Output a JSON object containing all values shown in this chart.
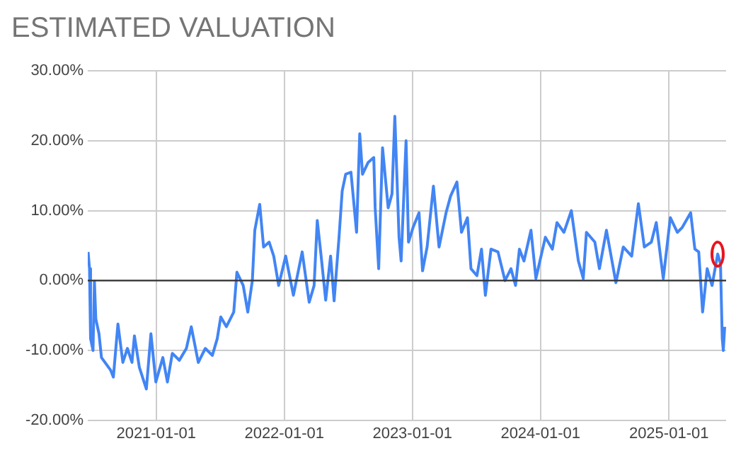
{
  "chart_data": {
    "type": "line",
    "title": "ESTIMATED VALUATION",
    "x": [
      "2020-06-21",
      "2020-06-25",
      "2020-06-28",
      "2020-07-05",
      "2020-07-09",
      "2020-07-13",
      "2020-07-22",
      "2020-07-29",
      "2020-08-24",
      "2020-09-01",
      "2020-09-14",
      "2020-09-28",
      "2020-10-11",
      "2020-10-24",
      "2020-10-31",
      "2020-11-14",
      "2020-12-04",
      "2020-12-17",
      "2020-12-31",
      "2021-01-20",
      "2021-02-02",
      "2021-02-16",
      "2021-03-08",
      "2021-03-28",
      "2021-04-11",
      "2021-05-01",
      "2021-05-21",
      "2021-06-10",
      "2021-06-24",
      "2021-07-04",
      "2021-07-20",
      "2021-08-10",
      "2021-08-19",
      "2021-09-06",
      "2021-09-19",
      "2021-10-02",
      "2021-10-09",
      "2021-10-23",
      "2021-11-03",
      "2021-11-19",
      "2021-12-02",
      "2021-12-16",
      "2022-01-05",
      "2022-01-27",
      "2022-02-21",
      "2022-03-13",
      "2022-03-27",
      "2022-04-05",
      "2022-04-16",
      "2022-04-29",
      "2022-05-13",
      "2022-05-23",
      "2022-06-06",
      "2022-06-15",
      "2022-06-25",
      "2022-07-10",
      "2022-07-26",
      "2022-08-04",
      "2022-08-12",
      "2022-08-28",
      "2022-09-13",
      "2022-09-17",
      "2022-09-27",
      "2022-10-08",
      "2022-10-24",
      "2022-11-04",
      "2022-11-12",
      "2022-11-24",
      "2022-11-30",
      "2022-12-14",
      "2022-12-21",
      "2023-01-03",
      "2023-01-20",
      "2023-01-30",
      "2023-02-12",
      "2023-03-02",
      "2023-03-18",
      "2023-04-07",
      "2023-04-20",
      "2023-05-08",
      "2023-05-21",
      "2023-06-07",
      "2023-06-17",
      "2023-07-04",
      "2023-07-17",
      "2023-07-28",
      "2023-08-13",
      "2023-09-02",
      "2023-09-22",
      "2023-10-09",
      "2023-10-22",
      "2023-11-02",
      "2023-11-15",
      "2023-12-05",
      "2023-12-19",
      "2024-01-15",
      "2024-02-04",
      "2024-02-17",
      "2024-03-08",
      "2024-03-29",
      "2024-04-18",
      "2024-05-02",
      "2024-05-11",
      "2024-06-04",
      "2024-06-17",
      "2024-07-07",
      "2024-08-03",
      "2024-08-24",
      "2024-09-17",
      "2024-10-06",
      "2024-10-23",
      "2024-11-12",
      "2024-11-26",
      "2024-12-16",
      "2025-01-05",
      "2025-01-25",
      "2025-02-08",
      "2025-03-04",
      "2025-03-16",
      "2025-03-27",
      "2025-04-07",
      "2025-04-20",
      "2025-05-04",
      "2025-05-20",
      "2025-05-28",
      "2025-06-02",
      "2025-06-05",
      "2025-06-09"
    ],
    "series": [
      {
        "color": "#4285f4",
        "values": [
          4.1,
          1.7,
          -8.3,
          -10,
          -0.1,
          -5.5,
          -7.6,
          -11,
          -12.8,
          -13.8,
          -6.2,
          -11.7,
          -9.7,
          -11.7,
          -7.9,
          -12.4,
          -15.5,
          -7.6,
          -14.5,
          -11,
          -14.5,
          -10.4,
          -11.4,
          -9.7,
          -6.6,
          -11.7,
          -9.7,
          -10.7,
          -8.3,
          -5.2,
          -6.6,
          -4.5,
          1.2,
          -0.7,
          -4.5,
          0,
          7.2,
          10.9,
          4.8,
          5.5,
          3.5,
          -0.7,
          3.5,
          -2.1,
          4.1,
          -3.1,
          -0.7,
          8.6,
          3.5,
          -2.8,
          3.5,
          -2.9,
          6.2,
          12.8,
          15.2,
          15.5,
          6.9,
          21,
          15.2,
          16.9,
          17.6,
          10.4,
          1.7,
          19,
          10.4,
          12.4,
          23.5,
          6.2,
          2.8,
          20,
          5.5,
          7.6,
          9.7,
          1.4,
          4.8,
          13.5,
          4.8,
          9.7,
          12.1,
          14.1,
          6.9,
          9,
          1.7,
          0.7,
          4.5,
          -2.1,
          4.5,
          4.1,
          0,
          1.7,
          -0.7,
          4.5,
          2.8,
          7.2,
          0.3,
          6.2,
          4.5,
          8.3,
          6.9,
          10,
          2.8,
          0.3,
          6.9,
          5.5,
          1.7,
          7.2,
          -0.3,
          4.8,
          3.5,
          11,
          4.8,
          5.5,
          8.3,
          0.3,
          9,
          6.9,
          7.6,
          9.7,
          4.5,
          4.1,
          -4.5,
          1.7,
          -0.7,
          3.8,
          2.4,
          -8.3,
          -10,
          -6.6
        ]
      }
    ],
    "xlim": [
      "2020-06-20",
      "2025-06-13"
    ],
    "xticks": [
      "2021-01-01",
      "2022-01-01",
      "2023-01-01",
      "2024-01-01",
      "2025-01-01"
    ],
    "ylim": [
      -20,
      30
    ],
    "yticks": [
      {
        "value": -20,
        "label": "-20.00%"
      },
      {
        "value": -10,
        "label": "-10.00%"
      },
      {
        "value": 0,
        "label": "0.00%"
      },
      {
        "value": 10,
        "label": "10.00%"
      },
      {
        "value": 20,
        "label": "20.00%"
      },
      {
        "value": 30,
        "label": "30.00%"
      }
    ],
    "ref_lines": [
      {
        "axis": "y",
        "value": 0,
        "color": "#333333"
      }
    ],
    "grid": true,
    "legend": false,
    "marker": "none",
    "line_style": "solid"
  }
}
